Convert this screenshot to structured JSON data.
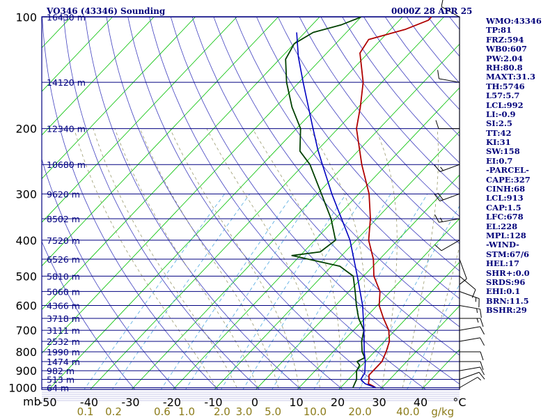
{
  "header": {
    "station": "VO346 (43346) Sounding",
    "time": "0000Z 28 APR 25"
  },
  "sidebar": [
    "WMO:43346",
    "TP:81",
    "FRZ:594",
    "WB0:607",
    "PW:2.04",
    "RH:80.8",
    "MAXT:31.3",
    "TH:5746",
    "L57:5.7",
    "LCL:992",
    "LI:-0.9",
    "SI:2.5",
    "TT:42",
    "KI:31",
    "SW:158",
    "EI:0.7",
    "-PARCEL-",
    "CAPE:327",
    "CINH:68",
    "LCL:913",
    "CAP:1.5",
    "LFC:678",
    "EL:228",
    "MPL:128",
    "-WIND-",
    "STM:67/6",
    "HEL:17",
    "SHR+:0.0",
    "SRDS:96",
    "EHI:0.1",
    "BRN:11.5",
    "BSHR:29"
  ],
  "colors": {
    "isobar": "#000080",
    "frame": "#000080",
    "isotherm": "#00c000",
    "dry_adiabat": "#3f3fbf",
    "moist_adiabat": "#9a9a6e",
    "mixing_ratio": "#4fa8e0",
    "temperature": "#b00000",
    "dewpoint": "#004000",
    "parcel": "#0000c0",
    "axis_text": "#000000",
    "mixing_text": "#8c7c1a",
    "header_text": "#00007a"
  },
  "chart_data": {
    "type": "line",
    "chart_kind": "skew-T log-P sounding",
    "yscale": "log",
    "ylim": [
      1000,
      100
    ],
    "xlim": [
      -50,
      50
    ],
    "x_unit": "°C",
    "y_unit": "mb",
    "pressure_levels": [
      {
        "p": 100,
        "hgt": "16430 m"
      },
      {
        "p": 150,
        "hgt": "14120 m"
      },
      {
        "p": 200,
        "hgt": "12340 m"
      },
      {
        "p": 250,
        "hgt": "10680 m"
      },
      {
        "p": 300,
        "hgt": "9620 m"
      },
      {
        "p": 350,
        "hgt": "8502 m"
      },
      {
        "p": 400,
        "hgt": "7520 m"
      },
      {
        "p": 450,
        "hgt": "6526 m"
      },
      {
        "p": 500,
        "hgt": "5810 m"
      },
      {
        "p": 550,
        "hgt": "5060 m"
      },
      {
        "p": 600,
        "hgt": "4366 m"
      },
      {
        "p": 650,
        "hgt": "3718 m"
      },
      {
        "p": 700,
        "hgt": "3111 m"
      },
      {
        "p": 750,
        "hgt": "2532 m"
      },
      {
        "p": 800,
        "hgt": "1990 m"
      },
      {
        "p": 850,
        "hgt": "1474 m"
      },
      {
        "p": 900,
        "hgt": "982 m"
      },
      {
        "p": 950,
        "hgt": "513 m"
      },
      {
        "p": 1000,
        "hgt": "64 m"
      }
    ],
    "y_tick_labels": [
      100,
      200,
      300,
      400,
      500,
      600,
      700,
      800,
      900,
      1000
    ],
    "y_axis_label": "mb",
    "x_tick_labels": [
      "-50",
      "-40",
      "-30",
      "-20",
      "-10",
      "0",
      "10",
      "20",
      "30",
      "40",
      "°C"
    ],
    "mixing_ratio_labels": [
      "0.1",
      "0.2",
      "0.6",
      "1.0",
      "2.0",
      "3.0",
      "5.0",
      "10.0",
      "20.0",
      "40.0"
    ],
    "mixing_ratio_unit": "g/kg",
    "series": [
      {
        "key": "temperature",
        "points": [
          [
            1000,
            28.5
          ],
          [
            990,
            27.5
          ],
          [
            975,
            25.8
          ],
          [
            950,
            25.0
          ],
          [
            925,
            24.0
          ],
          [
            900,
            24.0
          ],
          [
            850,
            24.0
          ],
          [
            800,
            22.8
          ],
          [
            750,
            21.2
          ],
          [
            700,
            18.5
          ],
          [
            650,
            14.5
          ],
          [
            600,
            10.5
          ],
          [
            550,
            7.5
          ],
          [
            500,
            2.5
          ],
          [
            450,
            -1.5
          ],
          [
            400,
            -7.0
          ],
          [
            350,
            -11.5
          ],
          [
            300,
            -17.5
          ],
          [
            250,
            -26.0
          ],
          [
            200,
            -35.5
          ],
          [
            175,
            -39.5
          ],
          [
            150,
            -44.5
          ],
          [
            125,
            -52.0
          ],
          [
            115,
            -53.0
          ],
          [
            108,
            -46.5
          ],
          [
            102,
            -43.0
          ],
          [
            100,
            -43.0
          ]
        ]
      },
      {
        "key": "dewpoint",
        "points": [
          [
            1000,
            23.0
          ],
          [
            975,
            22.5
          ],
          [
            950,
            22.0
          ],
          [
            900,
            20.0
          ],
          [
            870,
            19.5
          ],
          [
            850,
            18.0
          ],
          [
            830,
            19.0
          ],
          [
            800,
            17.0
          ],
          [
            750,
            14.5
          ],
          [
            700,
            12.5
          ],
          [
            650,
            8.5
          ],
          [
            600,
            5.0
          ],
          [
            550,
            1.5
          ],
          [
            500,
            -2.5
          ],
          [
            470,
            -8.0
          ],
          [
            440,
            -22.0
          ],
          [
            430,
            -16.0
          ],
          [
            400,
            -15.0
          ],
          [
            350,
            -21.0
          ],
          [
            300,
            -29.0
          ],
          [
            250,
            -38.5
          ],
          [
            230,
            -44.0
          ],
          [
            200,
            -49.0
          ],
          [
            175,
            -56.0
          ],
          [
            150,
            -63.0
          ],
          [
            130,
            -68.5
          ],
          [
            118,
            -70.0
          ],
          [
            110,
            -68.0
          ],
          [
            105,
            -63.0
          ],
          [
            100,
            -60.0
          ]
        ]
      },
      {
        "key": "parcel",
        "points": [
          [
            1000,
            28.5
          ],
          [
            975,
            25.0
          ],
          [
            950,
            23.0
          ],
          [
            913,
            22.5
          ],
          [
            850,
            20.0
          ],
          [
            800,
            17.5
          ],
          [
            700,
            12.5
          ],
          [
            600,
            6.5
          ],
          [
            500,
            -1.5
          ],
          [
            400,
            -11.5
          ],
          [
            300,
            -26.5
          ],
          [
            250,
            -35.5
          ],
          [
            228,
            -40.0
          ],
          [
            200,
            -46.0
          ],
          [
            150,
            -59.0
          ],
          [
            128,
            -66.0
          ],
          [
            110,
            -72.0
          ]
        ]
      }
    ],
    "wind_barbs": [
      {
        "p": 1000,
        "dir": 60,
        "spd": 5
      },
      {
        "p": 950,
        "dir": 70,
        "spd": 10
      },
      {
        "p": 900,
        "dir": 80,
        "spd": 10
      },
      {
        "p": 850,
        "dir": 90,
        "spd": 10
      },
      {
        "p": 800,
        "dir": 90,
        "spd": 10
      },
      {
        "p": 750,
        "dir": 80,
        "spd": 10
      },
      {
        "p": 700,
        "dir": 80,
        "spd": 10
      },
      {
        "p": 650,
        "dir": 90,
        "spd": 15
      },
      {
        "p": 600,
        "dir": 100,
        "spd": 15
      },
      {
        "p": 550,
        "dir": 110,
        "spd": 15
      },
      {
        "p": 500,
        "dir": 130,
        "spd": 10
      },
      {
        "p": 450,
        "dir": 160,
        "spd": 10
      },
      {
        "p": 400,
        "dir": 240,
        "spd": 10
      },
      {
        "p": 350,
        "dir": 260,
        "spd": 15
      },
      {
        "p": 300,
        "dir": 250,
        "spd": 20
      },
      {
        "p": 250,
        "dir": 250,
        "spd": 15
      },
      {
        "p": 200,
        "dir": 270,
        "spd": 10
      },
      {
        "p": 150,
        "dir": 280,
        "spd": 10
      },
      {
        "p": 100,
        "dir": 300,
        "spd": 10
      }
    ]
  }
}
